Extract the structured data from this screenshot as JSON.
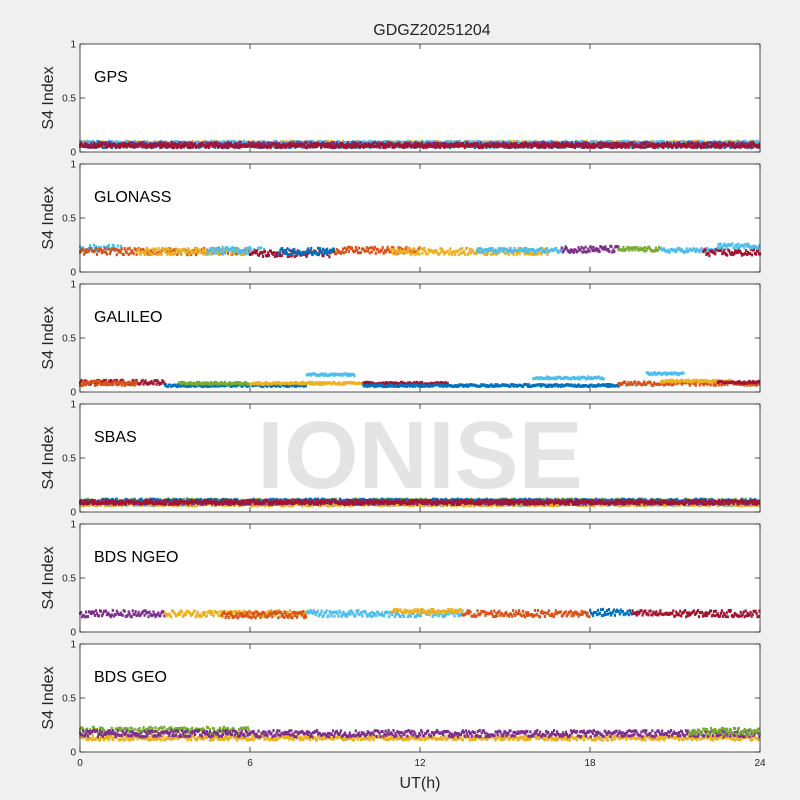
{
  "title": "GDGZ20251204",
  "watermark": "IONISE",
  "xlabel": "UT(h)",
  "ylabel": "S4 Index",
  "x_ticks": [
    "0",
    "6",
    "12",
    "18",
    "24"
  ],
  "y_ticks": [
    "0",
    "0.5",
    "1"
  ],
  "colors": [
    "#0072bd",
    "#d95319",
    "#edb120",
    "#7e2f8e",
    "#77ac30",
    "#4dbeee",
    "#a2142f"
  ],
  "chart_data": {
    "type": "scatter",
    "xlim": [
      0,
      24
    ],
    "ylim": [
      0,
      1
    ],
    "grid": false,
    "panels": [
      {
        "label": "GPS",
        "segments": [
          {
            "color": "#d95319",
            "x0": 0,
            "x1": 24,
            "y": 0.07,
            "noise": 0.02
          },
          {
            "color": "#edb120",
            "x0": 0,
            "x1": 24,
            "y": 0.08,
            "noise": 0.02
          },
          {
            "color": "#77ac30",
            "x0": 0,
            "x1": 24,
            "y": 0.07,
            "noise": 0.02
          },
          {
            "color": "#0072bd",
            "x0": 0,
            "x1": 24,
            "y": 0.06,
            "noise": 0.02
          },
          {
            "color": "#4dbeee",
            "x0": 0,
            "x1": 24,
            "y": 0.08,
            "noise": 0.02
          },
          {
            "color": "#7e2f8e",
            "x0": 0,
            "x1": 24,
            "y": 0.07,
            "noise": 0.02
          },
          {
            "color": "#a2142f",
            "x0": 0,
            "x1": 24,
            "y": 0.06,
            "noise": 0.02
          }
        ]
      },
      {
        "label": "GLONASS",
        "segments": [
          {
            "color": "#4dbeee",
            "x0": 0,
            "x1": 1.5,
            "y": 0.22,
            "noise": 0.03
          },
          {
            "color": "#d95319",
            "x0": 0,
            "x1": 6,
            "y": 0.19,
            "noise": 0.03
          },
          {
            "color": "#edb120",
            "x0": 2,
            "x1": 6,
            "y": 0.19,
            "noise": 0.03
          },
          {
            "color": "#4dbeee",
            "x0": 4.5,
            "x1": 6.5,
            "y": 0.2,
            "noise": 0.03
          },
          {
            "color": "#a2142f",
            "x0": 6,
            "x1": 9,
            "y": 0.17,
            "noise": 0.03
          },
          {
            "color": "#0072bd",
            "x0": 7,
            "x1": 9,
            "y": 0.19,
            "noise": 0.03
          },
          {
            "color": "#d95319",
            "x0": 9,
            "x1": 12,
            "y": 0.2,
            "noise": 0.03
          },
          {
            "color": "#edb120",
            "x0": 11,
            "x1": 16.5,
            "y": 0.19,
            "noise": 0.03
          },
          {
            "color": "#4dbeee",
            "x0": 14,
            "x1": 17,
            "y": 0.2,
            "noise": 0.02
          },
          {
            "color": "#7e2f8e",
            "x0": 17,
            "x1": 19,
            "y": 0.21,
            "noise": 0.03
          },
          {
            "color": "#77ac30",
            "x0": 19,
            "x1": 20.5,
            "y": 0.21,
            "noise": 0.02
          },
          {
            "color": "#4dbeee",
            "x0": 20.5,
            "x1": 22.5,
            "y": 0.2,
            "noise": 0.02
          },
          {
            "color": "#a2142f",
            "x0": 22,
            "x1": 24,
            "y": 0.18,
            "noise": 0.03
          },
          {
            "color": "#4dbeee",
            "x0": 22.5,
            "x1": 24,
            "y": 0.24,
            "noise": 0.02
          }
        ]
      },
      {
        "label": "GALILEO",
        "segments": [
          {
            "color": "#a2142f",
            "x0": 0,
            "x1": 3,
            "y": 0.09,
            "noise": 0.02
          },
          {
            "color": "#d95319",
            "x0": 0,
            "x1": 2,
            "y": 0.08,
            "noise": 0.02
          },
          {
            "color": "#0072bd",
            "x0": 3,
            "x1": 8,
            "y": 0.06,
            "noise": 0.01
          },
          {
            "color": "#77ac30",
            "x0": 3.5,
            "x1": 6,
            "y": 0.08,
            "noise": 0.01
          },
          {
            "color": "#edb120",
            "x0": 6,
            "x1": 10,
            "y": 0.08,
            "noise": 0.01
          },
          {
            "color": "#4dbeee",
            "x0": 8,
            "x1": 9.7,
            "y": 0.16,
            "noise": 0.01
          },
          {
            "color": "#a2142f",
            "x0": 10,
            "x1": 13,
            "y": 0.08,
            "noise": 0.01
          },
          {
            "color": "#0072bd",
            "x0": 10,
            "x1": 19,
            "y": 0.06,
            "noise": 0.01
          },
          {
            "color": "#4dbeee",
            "x0": 16,
            "x1": 18.5,
            "y": 0.13,
            "noise": 0.01
          },
          {
            "color": "#d95319",
            "x0": 19,
            "x1": 24,
            "y": 0.08,
            "noise": 0.02
          },
          {
            "color": "#4dbeee",
            "x0": 20,
            "x1": 21.3,
            "y": 0.17,
            "noise": 0.01
          },
          {
            "color": "#edb120",
            "x0": 20.5,
            "x1": 23,
            "y": 0.1,
            "noise": 0.01
          },
          {
            "color": "#a2142f",
            "x0": 22.5,
            "x1": 24,
            "y": 0.09,
            "noise": 0.01
          }
        ]
      },
      {
        "label": "SBAS",
        "segments": [
          {
            "color": "#77ac30",
            "x0": 0,
            "x1": 24,
            "y": 0.1,
            "noise": 0.02
          },
          {
            "color": "#4dbeee",
            "x0": 0,
            "x1": 24,
            "y": 0.08,
            "noise": 0.02
          },
          {
            "color": "#0072bd",
            "x0": 0,
            "x1": 24,
            "y": 0.1,
            "noise": 0.02
          },
          {
            "color": "#edb120",
            "x0": 0,
            "x1": 24,
            "y": 0.07,
            "noise": 0.015
          },
          {
            "color": "#7e2f8e",
            "x0": 0,
            "x1": 24,
            "y": 0.09,
            "noise": 0.02
          },
          {
            "color": "#a2142f",
            "x0": 0,
            "x1": 24,
            "y": 0.09,
            "noise": 0.02
          }
        ]
      },
      {
        "label": "BDS NGEO",
        "segments": [
          {
            "color": "#7e2f8e",
            "x0": 0,
            "x1": 3,
            "y": 0.17,
            "noise": 0.03
          },
          {
            "color": "#edb120",
            "x0": 3,
            "x1": 8,
            "y": 0.17,
            "noise": 0.03
          },
          {
            "color": "#d95319",
            "x0": 5,
            "x1": 8,
            "y": 0.16,
            "noise": 0.03
          },
          {
            "color": "#4dbeee",
            "x0": 8,
            "x1": 13.5,
            "y": 0.17,
            "noise": 0.03
          },
          {
            "color": "#edb120",
            "x0": 11,
            "x1": 13.5,
            "y": 0.19,
            "noise": 0.02
          },
          {
            "color": "#d95319",
            "x0": 13.5,
            "x1": 18,
            "y": 0.17,
            "noise": 0.03
          },
          {
            "color": "#0072bd",
            "x0": 18,
            "x1": 19.5,
            "y": 0.18,
            "noise": 0.03
          },
          {
            "color": "#a2142f",
            "x0": 19.5,
            "x1": 24,
            "y": 0.17,
            "noise": 0.03
          }
        ]
      },
      {
        "label": "BDS GEO",
        "segments": [
          {
            "color": "#edb120",
            "x0": 0,
            "x1": 24,
            "y": 0.13,
            "noise": 0.02
          },
          {
            "color": "#77ac30",
            "x0": 0,
            "x1": 6,
            "y": 0.2,
            "noise": 0.03
          },
          {
            "color": "#7e2f8e",
            "x0": 0,
            "x1": 24,
            "y": 0.17,
            "noise": 0.03
          },
          {
            "color": "#77ac30",
            "x0": 21.5,
            "x1": 24,
            "y": 0.19,
            "noise": 0.03
          }
        ]
      }
    ]
  }
}
